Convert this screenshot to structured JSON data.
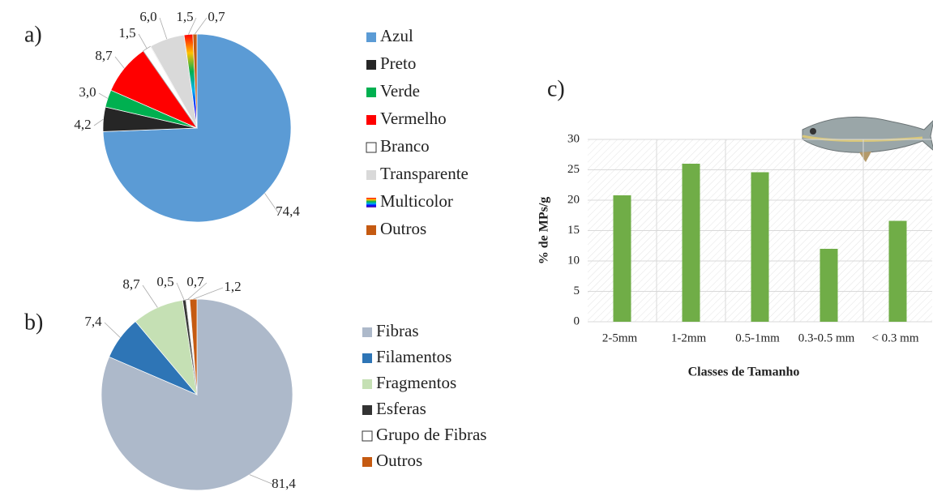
{
  "chart_data": [
    {
      "type": "pie",
      "label": "a)",
      "categories": [
        "Azul",
        "Preto",
        "Verde",
        "Vermelho",
        "Branco",
        "Transparente",
        "Multicolor",
        "Outros"
      ],
      "values": [
        74.4,
        4.2,
        3,
        8.7,
        1.5,
        6,
        1.5,
        0.7
      ],
      "value_labels": [
        "74,4",
        "4,2",
        "3,0",
        "8,7",
        "1,5",
        "6,0",
        "1,5",
        "0,7"
      ],
      "colors": [
        "#5b9bd5",
        "#262626",
        "#00b050",
        "#ff0000",
        "#ffffff",
        "#d9d9d9",
        "url(#rainbow)",
        "#c55a11"
      ]
    },
    {
      "type": "pie",
      "label": "b)",
      "categories": [
        "Fibras",
        "Filamentos",
        "Fragmentos",
        "Esferas",
        "Grupo de Fibras",
        "Outros"
      ],
      "values": [
        81.4,
        7.4,
        8.7,
        0.5,
        0.7,
        1.2
      ],
      "value_labels": [
        "81,4",
        "7,4",
        "8,7",
        "0,5",
        "0,7",
        "1,2"
      ],
      "colors": [
        "#adb9ca",
        "#2e75b6",
        "#c5e0b4",
        "#333333",
        "#ffffff",
        "#c55a11"
      ]
    },
    {
      "type": "bar",
      "label": "c)",
      "categories": [
        "2-5mm",
        "1-2mm",
        "0.5-1mm",
        "0.3-0.5 mm",
        "< 0.3 mm"
      ],
      "values": [
        20.8,
        26,
        24.6,
        12,
        16.6
      ],
      "color": "#70ad47",
      "ylim": [
        0,
        30
      ],
      "yticks": [
        0,
        5,
        10,
        15,
        20,
        25,
        30
      ],
      "grid": true,
      "x_label": "Classes de Tamanho",
      "y_label": "% de MPs/g"
    }
  ]
}
